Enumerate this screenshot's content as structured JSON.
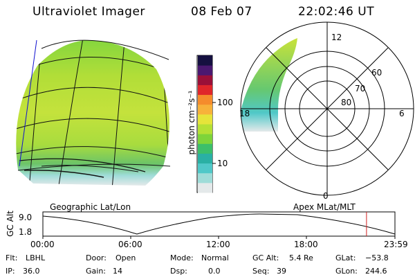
{
  "header": {
    "title": "Ultraviolet Imager",
    "date": "08 Feb 07",
    "time": "22:02:46 UT"
  },
  "colorbar": {
    "unit_label": "photon cm⁻²s⁻¹",
    "tick_labels": [
      "100",
      "10"
    ],
    "colors": [
      "#e4e9ea",
      "#9fdcd8",
      "#50c8c8",
      "#2ab0a4",
      "#3cbf6a",
      "#7ed43a",
      "#b5e035",
      "#e6e43a",
      "#f7b23a",
      "#f58c2c",
      "#e0262a",
      "#9a1038",
      "#4a1870",
      "#151040"
    ]
  },
  "map": {
    "left_label": "Geographic Lat/Lon",
    "right_label": "Apex MLat/MLT",
    "polar_mlt_labels": [
      "12",
      "6",
      "0",
      "18"
    ],
    "polar_lat_labels": [
      "60",
      "70",
      "80"
    ]
  },
  "timeline": {
    "y_label": "GC Alt",
    "y_ticks": [
      "9.0",
      "1.8"
    ],
    "x_ticks": [
      "00:00",
      "06:00",
      "12:00",
      "18:00",
      "23:59"
    ],
    "current_time_marker": "22:02:46",
    "marker_color": "#d02020"
  },
  "info": {
    "filter_label": "Flt:",
    "filter_value": "LBHL",
    "door_label": "Door:",
    "door_value": "Open",
    "mode_label": "Mode:",
    "mode_value": "Normal",
    "gcalt_label": "GC Alt:",
    "gcalt_value": "5.4 Re",
    "glat_label": "GLat:",
    "glat_value": "−53.8",
    "ip_label": "IP:",
    "ip_value": "36.0",
    "gain_label": "Gain:",
    "gain_value": "14",
    "dsp_label": "Dsp:",
    "dsp_value": "0.0",
    "seq_label": "Seq:",
    "seq_value": "39",
    "glon_label": "GLon:",
    "glon_value": "244.6"
  }
}
